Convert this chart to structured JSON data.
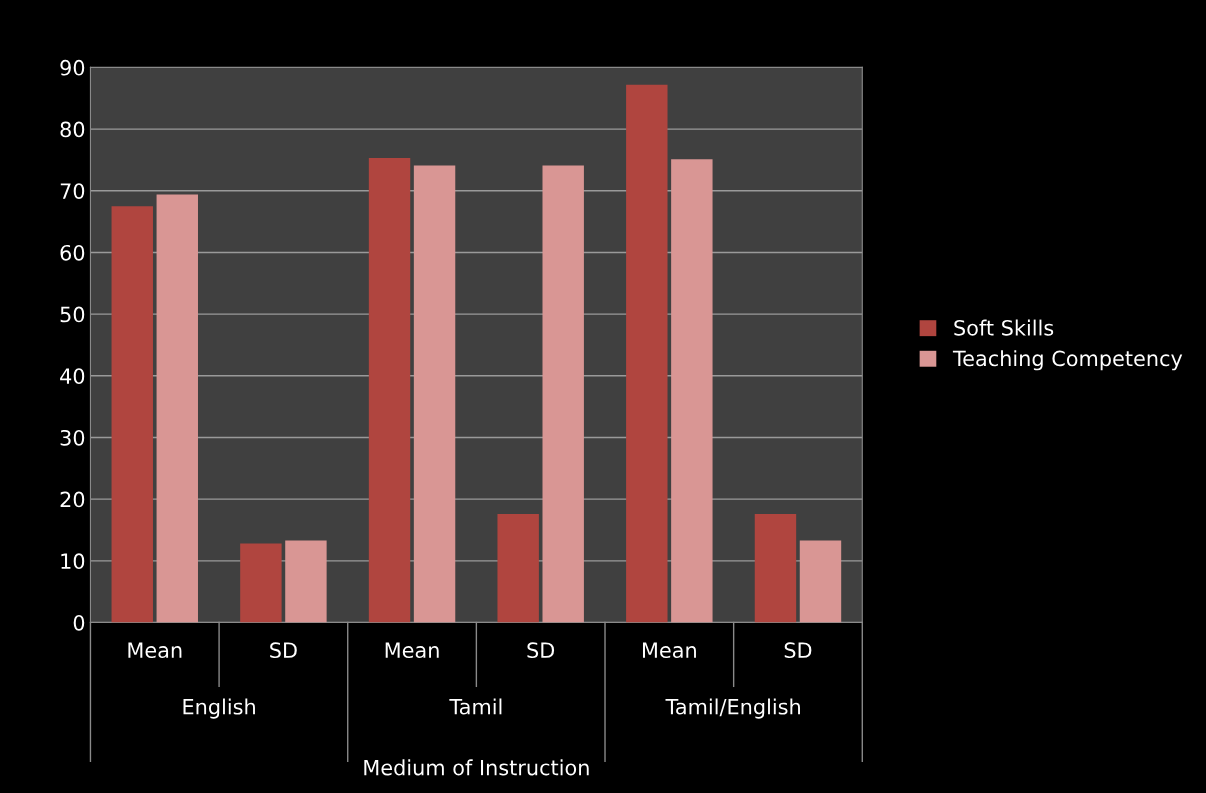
{
  "chart_data": {
    "type": "bar",
    "xlabel": "Medium of Instruction",
    "categories": [
      "Mean",
      "SD",
      "Mean",
      "SD",
      "Mean",
      "SD"
    ],
    "annotations": [
      "English",
      "Tamil",
      "Tamil/English"
    ],
    "series": [
      {
        "name": "Soft Skills",
        "color": "#b0453f",
        "values": [
          67.5,
          12.8,
          75.3,
          17.6,
          87.2,
          17.6
        ]
      },
      {
        "name": "Teaching Competency",
        "color": "#d99694",
        "values": [
          69.4,
          13.3,
          74.1,
          74.1,
          75.1,
          13.3
        ]
      }
    ],
    "ylim": [
      0,
      90
    ],
    "yticks": [
      0,
      10,
      20,
      30,
      40,
      50,
      60,
      70,
      80,
      90
    ],
    "grid": "y",
    "legend": "right"
  }
}
